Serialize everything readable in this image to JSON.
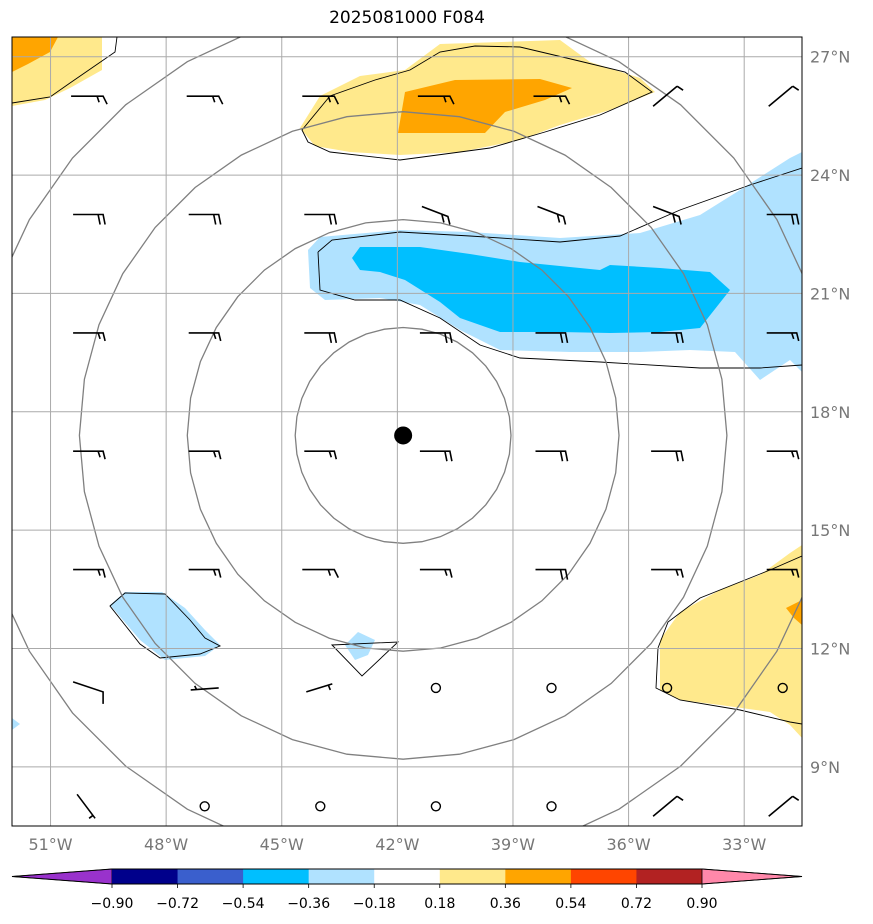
{
  "title": "2025081000 F084",
  "map": {
    "lon_range": [
      -52,
      -31.5
    ],
    "lat_range": [
      7.5,
      27.5
    ],
    "lon_ticks": [
      {
        "lon": -51,
        "label": "51°W"
      },
      {
        "lon": -48,
        "label": "48°W"
      },
      {
        "lon": -45,
        "label": "45°W"
      },
      {
        "lon": -42,
        "label": "42°W"
      },
      {
        "lon": -39,
        "label": "39°W"
      },
      {
        "lon": -36,
        "label": "36°W"
      },
      {
        "lon": -33,
        "label": "33°W"
      }
    ],
    "lat_ticks": [
      {
        "lat": 27,
        "label": "27°N"
      },
      {
        "lat": 24,
        "label": "24°N"
      },
      {
        "lat": 21,
        "label": "21°N"
      },
      {
        "lat": 18,
        "label": "18°N"
      },
      {
        "lat": 15,
        "label": "15°N"
      },
      {
        "lat": 12,
        "label": "12°N"
      },
      {
        "lat": 9,
        "label": "9°N"
      }
    ],
    "center": {
      "lon": -41.85,
      "lat": 17.4
    },
    "range_ring_radii_deg": [
      2.8,
      5.6,
      8.4,
      11.2
    ]
  },
  "colorbar": {
    "colors": [
      "#9932cc",
      "#00008b",
      "#3a5fcd",
      "#00bfff",
      "#b0e2ff",
      "#ffffff",
      "#ffe98c",
      "#ffa500",
      "#ff4500",
      "#b22222",
      "#ff88aa"
    ],
    "labels": [
      "−0.90",
      "−0.72",
      "−0.54",
      "−0.36",
      "−0.18",
      "0.18",
      "0.36",
      "0.54",
      "0.72",
      "0.90"
    ]
  },
  "wind_barbs": {
    "rows": [
      {
        "lat": 26.0,
        "lons": [
          -50,
          -47,
          -44,
          -41,
          -38,
          -35,
          -32
        ],
        "shapes": [
          "hook-r",
          "hook-r",
          "hook-r",
          "hook-r",
          "hook-r",
          "diag",
          "diag"
        ]
      },
      {
        "lat": 23.0,
        "lons": [
          -50,
          -47,
          -44,
          -41,
          -38,
          -35,
          -32
        ],
        "shapes": [
          "barb2",
          "barb2",
          "barb2",
          "diag2",
          "diag2",
          "diag2",
          "barb2"
        ]
      },
      {
        "lat": 20.0,
        "lons": [
          -50,
          -47,
          -44,
          -41,
          -38,
          -35,
          -32
        ],
        "shapes": [
          "barb1",
          "barb1",
          "barb2",
          "barb2",
          "barb2",
          "barb2",
          "barb1"
        ]
      },
      {
        "lat": 17.0,
        "lons": [
          -50,
          -47,
          -44,
          -41,
          -38,
          -35,
          -32
        ],
        "shapes": [
          "barb1",
          "barb1",
          "barb1",
          "barb2",
          "barb2",
          "barb2",
          "barb1"
        ]
      },
      {
        "lat": 14.0,
        "lons": [
          -50,
          -47,
          -44,
          -41,
          -38,
          -35,
          -32
        ],
        "shapes": [
          "barb1",
          "barb1",
          "hook-r",
          "barb1",
          "barb2",
          "barb1",
          "barb1"
        ]
      },
      {
        "lat": 11.0,
        "lons": [
          -50,
          -47,
          -44,
          -41,
          -38,
          -35,
          -32
        ],
        "shapes": [
          "flag-l",
          "short",
          "up",
          "calm",
          "calm",
          "calm",
          "calm"
        ]
      },
      {
        "lat": 8.0,
        "lons": [
          -50,
          -47,
          -44,
          -41,
          -38,
          -35,
          -32
        ],
        "shapes": [
          "down",
          "calm",
          "calm",
          "calm",
          "calm",
          "diag",
          "diag"
        ]
      }
    ]
  }
}
